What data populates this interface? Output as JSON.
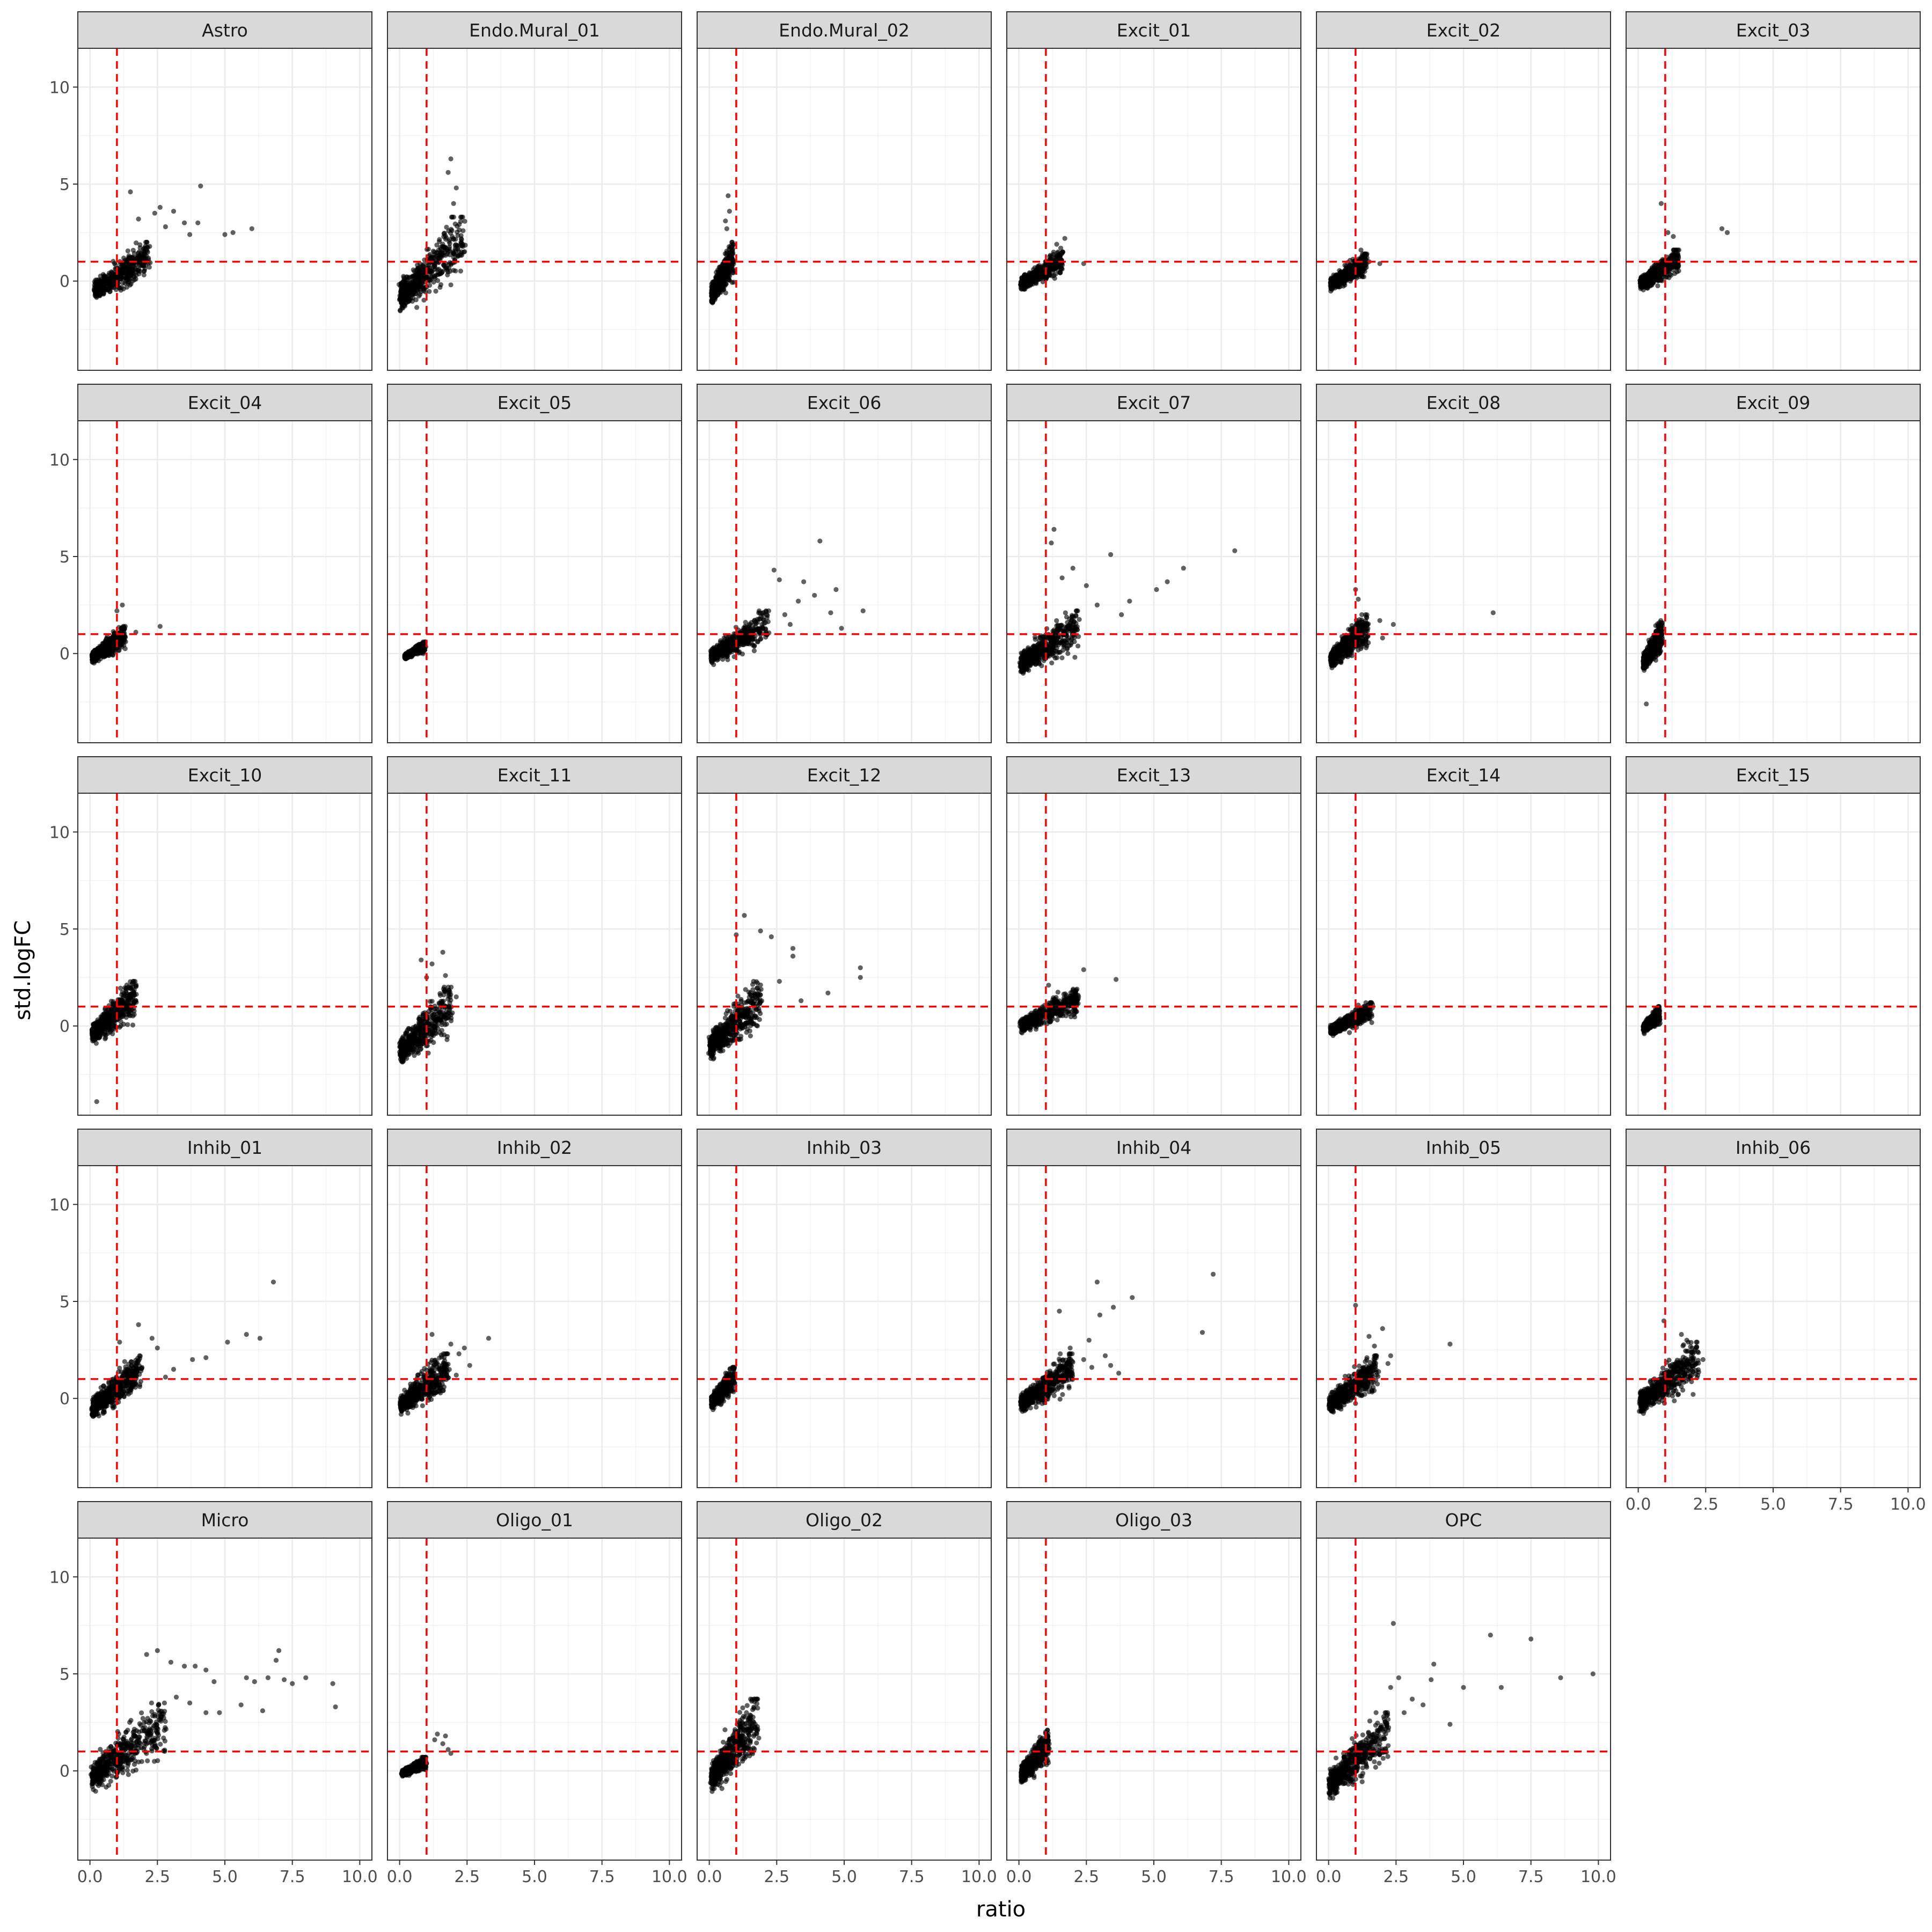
{
  "chart_data": {
    "type": "scatter",
    "xlabel": "ratio",
    "ylabel": "std.logFC",
    "xlim": [
      -0.45,
      10.45
    ],
    "ylim": [
      -4.6,
      12.0
    ],
    "x_ticks": [
      0.0,
      2.5,
      5.0,
      7.5,
      10.0
    ],
    "x_tick_labels": [
      "0.0",
      "2.5",
      "5.0",
      "7.5",
      "10.0"
    ],
    "y_ticks": [
      0,
      5,
      10
    ],
    "y_tick_labels": [
      "0",
      "5",
      "10"
    ],
    "reference_lines": {
      "vertical_x": 1,
      "horizontal_y": 1,
      "color": "#FF0000",
      "style": "dashed"
    },
    "point_color": "#000000",
    "grid": true,
    "facets": [
      {
        "name": "Astro",
        "ratio_range": [
          0.2,
          2.2
        ],
        "core": [
          -1.3,
          2.0
        ],
        "outliers": [
          [
            4.1,
            4.9
          ],
          [
            1.5,
            4.6
          ],
          [
            6.0,
            2.7
          ],
          [
            5.3,
            2.5
          ],
          [
            5.0,
            2.4
          ],
          [
            3.5,
            3.0
          ],
          [
            2.6,
            3.8
          ],
          [
            3.1,
            3.6
          ],
          [
            4.0,
            3.0
          ],
          [
            2.4,
            3.5
          ],
          [
            3.7,
            2.4
          ],
          [
            2.8,
            2.8
          ],
          [
            1.8,
            3.2
          ]
        ]
      },
      {
        "name": "Endo.Mural_01",
        "ratio_range": [
          0.05,
          2.4
        ],
        "core": [
          -2.1,
          3.3
        ],
        "outliers": [
          [
            1.9,
            6.3
          ],
          [
            1.8,
            5.6
          ],
          [
            2.1,
            4.8
          ],
          [
            2.0,
            4.0
          ]
        ]
      },
      {
        "name": "Endo.Mural_02",
        "ratio_range": [
          0.1,
          0.9
        ],
        "core": [
          -1.6,
          2.0
        ],
        "outliers": [
          [
            0.7,
            4.4
          ],
          [
            0.75,
            3.6
          ],
          [
            0.6,
            3.1
          ],
          [
            0.65,
            2.7
          ]
        ]
      },
      {
        "name": "Excit_01",
        "ratio_range": [
          0.1,
          1.6
        ],
        "core": [
          -0.7,
          1.5
        ],
        "outliers": [
          [
            1.7,
            2.2
          ],
          [
            1.4,
            1.9
          ],
          [
            1.55,
            1.7
          ],
          [
            2.4,
            0.9
          ]
        ]
      },
      {
        "name": "Excit_02",
        "ratio_range": [
          0.1,
          1.4
        ],
        "core": [
          -0.7,
          1.4
        ],
        "outliers": [
          [
            1.2,
            1.6
          ],
          [
            1.9,
            0.9
          ],
          [
            1.5,
            1.0
          ]
        ]
      },
      {
        "name": "Excit_03",
        "ratio_range": [
          0.1,
          1.5
        ],
        "core": [
          -0.7,
          1.6
        ],
        "outliers": [
          [
            0.85,
            4.0
          ],
          [
            3.1,
            2.7
          ],
          [
            3.3,
            2.5
          ],
          [
            1.1,
            2.5
          ],
          [
            1.3,
            2.3
          ]
        ]
      },
      {
        "name": "Excit_04",
        "ratio_range": [
          0.1,
          1.3
        ],
        "core": [
          -0.7,
          1.4
        ],
        "outliers": [
          [
            2.6,
            1.4
          ],
          [
            1.7,
            1.1
          ],
          [
            1.2,
            2.5
          ],
          [
            1.0,
            2.2
          ]
        ]
      },
      {
        "name": "Excit_05",
        "ratio_range": [
          0.2,
          0.95
        ],
        "core": [
          -0.4,
          0.6
        ],
        "outliers": []
      },
      {
        "name": "Excit_06",
        "ratio_range": [
          0.1,
          2.2
        ],
        "core": [
          -0.9,
          2.2
        ],
        "outliers": [
          [
            4.1,
            5.8
          ],
          [
            2.4,
            4.3
          ],
          [
            3.5,
            3.7
          ],
          [
            2.6,
            3.8
          ],
          [
            3.9,
            3.0
          ],
          [
            4.7,
            3.3
          ],
          [
            5.7,
            2.2
          ],
          [
            3.3,
            2.7
          ],
          [
            4.5,
            2.1
          ],
          [
            4.9,
            1.3
          ],
          [
            3.0,
            1.5
          ],
          [
            2.8,
            2.0
          ]
        ]
      },
      {
        "name": "Excit_07",
        "ratio_range": [
          0.1,
          2.2
        ],
        "core": [
          -1.4,
          2.2
        ],
        "outliers": [
          [
            8.0,
            5.3
          ],
          [
            6.1,
            4.4
          ],
          [
            5.5,
            3.7
          ],
          [
            5.1,
            3.3
          ],
          [
            3.4,
            5.1
          ],
          [
            1.3,
            6.4
          ],
          [
            1.2,
            5.7
          ],
          [
            2.0,
            4.4
          ],
          [
            2.5,
            3.5
          ],
          [
            4.1,
            2.7
          ],
          [
            3.8,
            2.0
          ],
          [
            1.6,
            3.9
          ],
          [
            2.9,
            2.5
          ]
        ]
      },
      {
        "name": "Excit_08",
        "ratio_range": [
          0.1,
          1.5
        ],
        "core": [
          -1.0,
          2.0
        ],
        "outliers": [
          [
            6.1,
            2.1
          ],
          [
            2.4,
            1.5
          ],
          [
            1.0,
            3.3
          ],
          [
            1.1,
            2.8
          ],
          [
            1.9,
            1.7
          ],
          [
            2.0,
            0.8
          ]
        ]
      },
      {
        "name": "Excit_09",
        "ratio_range": [
          0.2,
          0.9
        ],
        "core": [
          -1.2,
          1.7
        ],
        "outliers": [
          [
            0.3,
            -2.6
          ]
        ]
      },
      {
        "name": "Excit_10",
        "ratio_range": [
          0.1,
          1.7
        ],
        "core": [
          -1.3,
          2.3
        ],
        "outliers": [
          [
            0.25,
            -3.9
          ],
          [
            1.7,
            1.3
          ]
        ]
      },
      {
        "name": "Excit_11",
        "ratio_range": [
          0.05,
          1.9
        ],
        "core": [
          -2.4,
          2.0
        ],
        "outliers": [
          [
            1.6,
            3.8
          ],
          [
            0.8,
            3.4
          ],
          [
            1.2,
            3.2
          ],
          [
            1.7,
            2.6
          ],
          [
            2.1,
            1.5
          ],
          [
            1.0,
            2.5
          ]
        ]
      },
      {
        "name": "Excit_12",
        "ratio_range": [
          0.05,
          1.9
        ],
        "core": [
          -2.2,
          2.3
        ],
        "outliers": [
          [
            1.3,
            5.7
          ],
          [
            1.9,
            4.9
          ],
          [
            2.3,
            4.6
          ],
          [
            1.0,
            4.7
          ],
          [
            3.1,
            4.0
          ],
          [
            3.1,
            3.6
          ],
          [
            5.6,
            3.0
          ],
          [
            5.6,
            2.5
          ],
          [
            4.4,
            1.7
          ],
          [
            3.4,
            1.3
          ],
          [
            2.6,
            2.3
          ]
        ]
      },
      {
        "name": "Excit_13",
        "ratio_range": [
          0.1,
          2.2
        ],
        "core": [
          -0.6,
          1.9
        ],
        "outliers": [
          [
            3.6,
            2.4
          ],
          [
            2.4,
            2.9
          ],
          [
            2.2,
            1.4
          ],
          [
            1.1,
            2.1
          ]
        ]
      },
      {
        "name": "Excit_14",
        "ratio_range": [
          0.1,
          1.6
        ],
        "core": [
          -0.7,
          1.2
        ],
        "outliers": [
          [
            1.5,
            0.4
          ],
          [
            1.3,
            0.9
          ]
        ]
      },
      {
        "name": "Excit_15",
        "ratio_range": [
          0.2,
          0.8
        ],
        "core": [
          -0.5,
          1.0
        ],
        "outliers": []
      },
      {
        "name": "Inhib_01",
        "ratio_range": [
          0.1,
          1.9
        ],
        "core": [
          -1.4,
          2.2
        ],
        "outliers": [
          [
            6.8,
            6.0
          ],
          [
            5.8,
            3.3
          ],
          [
            6.3,
            3.1
          ],
          [
            5.1,
            2.9
          ],
          [
            4.3,
            2.1
          ],
          [
            3.8,
            2.0
          ],
          [
            2.3,
            3.1
          ],
          [
            1.8,
            3.8
          ],
          [
            1.1,
            2.9
          ],
          [
            2.8,
            1.1
          ],
          [
            3.1,
            1.5
          ],
          [
            2.5,
            2.6
          ]
        ]
      },
      {
        "name": "Inhib_02",
        "ratio_range": [
          0.05,
          1.8
        ],
        "core": [
          -1.2,
          2.3
        ],
        "outliers": [
          [
            3.3,
            3.1
          ],
          [
            2.4,
            2.6
          ],
          [
            2.2,
            2.3
          ],
          [
            1.2,
            3.3
          ],
          [
            2.6,
            1.7
          ],
          [
            2.1,
            1.2
          ],
          [
            1.9,
            2.8
          ]
        ]
      },
      {
        "name": "Inhib_03",
        "ratio_range": [
          0.1,
          0.95
        ],
        "core": [
          -0.8,
          1.6
        ],
        "outliers": []
      },
      {
        "name": "Inhib_04",
        "ratio_range": [
          0.1,
          2.0
        ],
        "core": [
          -1.1,
          2.3
        ],
        "outliers": [
          [
            7.2,
            6.4
          ],
          [
            6.8,
            3.4
          ],
          [
            4.2,
            5.2
          ],
          [
            2.9,
            6.0
          ],
          [
            3.5,
            4.7
          ],
          [
            3.0,
            4.3
          ],
          [
            1.5,
            4.5
          ],
          [
            2.6,
            3.0
          ],
          [
            3.2,
            2.2
          ],
          [
            3.4,
            1.7
          ],
          [
            3.7,
            1.3
          ],
          [
            2.4,
            2.0
          ],
          [
            1.9,
            2.6
          ],
          [
            2.7,
            1.6
          ]
        ]
      },
      {
        "name": "Inhib_05",
        "ratio_range": [
          0.05,
          1.8
        ],
        "core": [
          -1.1,
          2.2
        ],
        "outliers": [
          [
            4.5,
            2.8
          ],
          [
            2.0,
            3.6
          ],
          [
            1.5,
            3.2
          ],
          [
            1.0,
            4.8
          ],
          [
            2.3,
            2.2
          ],
          [
            2.2,
            1.8
          ],
          [
            1.7,
            2.7
          ]
        ]
      },
      {
        "name": "Inhib_06",
        "ratio_range": [
          0.1,
          2.2
        ],
        "core": [
          -1.2,
          2.9
        ],
        "outliers": [
          [
            0.95,
            4.0
          ],
          [
            2.0,
            2.6
          ],
          [
            2.4,
            2.0
          ],
          [
            1.8,
            3.0
          ],
          [
            1.6,
            3.3
          ]
        ]
      },
      {
        "name": "Micro",
        "ratio_range": [
          0.1,
          2.8
        ],
        "core": [
          -1.6,
          3.5
        ],
        "outliers": [
          [
            9.0,
            4.5
          ],
          [
            9.1,
            3.3
          ],
          [
            8.0,
            4.8
          ],
          [
            7.2,
            4.7
          ],
          [
            7.0,
            6.2
          ],
          [
            6.9,
            5.7
          ],
          [
            6.6,
            4.8
          ],
          [
            5.8,
            4.8
          ],
          [
            5.6,
            3.4
          ],
          [
            6.1,
            4.6
          ],
          [
            4.6,
            4.6
          ],
          [
            4.3,
            5.2
          ],
          [
            3.5,
            5.4
          ],
          [
            3.9,
            5.4
          ],
          [
            2.5,
            6.2
          ],
          [
            3.0,
            5.6
          ],
          [
            2.1,
            6.0
          ],
          [
            4.3,
            3.0
          ],
          [
            4.8,
            3.0
          ],
          [
            6.4,
            3.1
          ],
          [
            3.2,
            3.8
          ],
          [
            3.7,
            3.5
          ],
          [
            7.5,
            4.5
          ]
        ]
      },
      {
        "name": "Oligo_01",
        "ratio_range": [
          0.1,
          1.0
        ],
        "core": [
          -0.4,
          0.7
        ],
        "outliers": [
          [
            1.3,
            1.6
          ],
          [
            1.7,
            1.8
          ],
          [
            1.4,
            1.9
          ],
          [
            1.8,
            1.1
          ],
          [
            1.9,
            0.9
          ],
          [
            1.6,
            1.4
          ]
        ]
      },
      {
        "name": "Oligo_02",
        "ratio_range": [
          0.1,
          1.8
        ],
        "core": [
          -1.6,
          3.7
        ],
        "outliers": []
      },
      {
        "name": "Oligo_03",
        "ratio_range": [
          0.1,
          1.1
        ],
        "core": [
          -1.0,
          2.1
        ],
        "outliers": []
      },
      {
        "name": "OPC",
        "ratio_range": [
          0.05,
          2.2
        ],
        "core": [
          -1.9,
          3.0
        ],
        "outliers": [
          [
            9.8,
            5.0
          ],
          [
            8.6,
            4.8
          ],
          [
            7.5,
            6.8
          ],
          [
            6.0,
            7.0
          ],
          [
            6.4,
            4.3
          ],
          [
            5.0,
            4.3
          ],
          [
            2.4,
            7.6
          ],
          [
            3.9,
            5.5
          ],
          [
            4.5,
            2.4
          ],
          [
            3.1,
            3.7
          ],
          [
            3.8,
            4.7
          ],
          [
            3.5,
            3.4
          ],
          [
            2.6,
            4.8
          ],
          [
            2.3,
            4.3
          ],
          [
            2.8,
            3.0
          ]
        ]
      }
    ]
  }
}
